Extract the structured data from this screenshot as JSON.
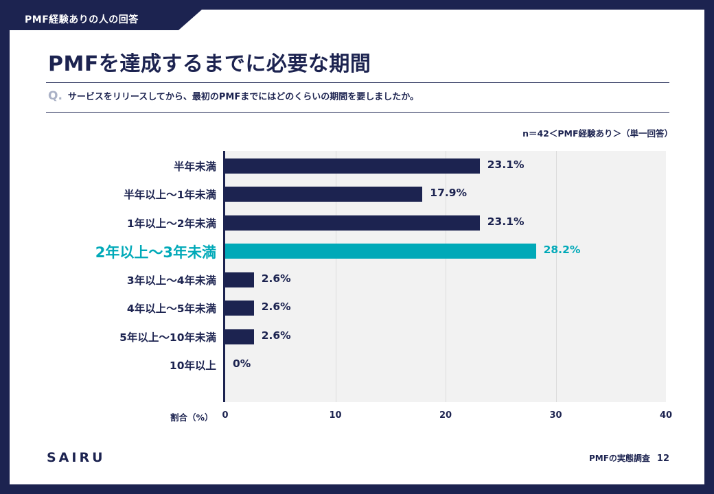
{
  "header": {
    "tab": "PMF経験ありの人の回答"
  },
  "title": "PMFを達成するまでに必要な期間",
  "question": {
    "prefix": "Q.",
    "text": "サービスをリリースしてから、最初のPMFまでにはどのくらいの期間を要しましたか。"
  },
  "sample_note": "n＝42＜PMF経験あり＞（単一回答）",
  "footer": {
    "logo": "SAIRU",
    "report": "PMFの実態調査",
    "page": "12"
  },
  "colors": {
    "bar": "#1c2350",
    "highlight": "#00a9b8"
  },
  "chart_data": {
    "type": "bar",
    "orientation": "horizontal",
    "categories": [
      "半年未満",
      "半年以上〜1年未満",
      "1年以上〜2年未満",
      "2年以上〜3年未満",
      "3年以上〜4年未満",
      "4年以上〜5年未満",
      "5年以上〜10年未満",
      "10年以上"
    ],
    "values": [
      23.1,
      17.9,
      23.1,
      28.2,
      2.6,
      2.6,
      2.6,
      0
    ],
    "value_labels": [
      "23.1%",
      "17.9%",
      "23.1%",
      "28.2%",
      "2.6%",
      "2.6%",
      "2.6%",
      "0%"
    ],
    "highlight_index": 3,
    "xlabel": "割合（%）",
    "xlim": [
      0,
      40
    ],
    "xticks": [
      0,
      10,
      20,
      30,
      40
    ]
  }
}
